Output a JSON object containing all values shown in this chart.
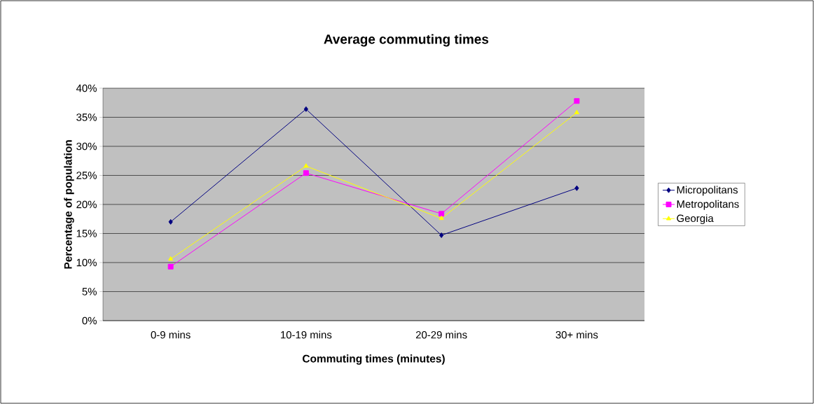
{
  "chart_data": {
    "type": "line",
    "title": "Average commuting times",
    "xlabel": "Commuting times (minutes)",
    "ylabel": "Percentage of population",
    "categories": [
      "0-9 mins",
      "10-19 mins",
      "20-29 mins",
      "30+ mins"
    ],
    "series": [
      {
        "name": "Micropolitans",
        "color": "#000080",
        "marker": "diamond",
        "values": [
          17.0,
          36.4,
          14.7,
          22.8
        ]
      },
      {
        "name": "Metropolitans",
        "color": "#ff00ff",
        "marker": "square",
        "values": [
          9.3,
          25.4,
          18.4,
          37.8
        ]
      },
      {
        "name": "Georgia",
        "color": "#ffff00",
        "marker": "triangle",
        "values": [
          10.6,
          26.6,
          17.6,
          35.8
        ]
      }
    ],
    "ylim": [
      0,
      40
    ],
    "yticks": [
      {
        "value": 0,
        "label": "0%"
      },
      {
        "value": 5,
        "label": "5%"
      },
      {
        "value": 10,
        "label": "10%"
      },
      {
        "value": 15,
        "label": "15%"
      },
      {
        "value": 20,
        "label": "20%"
      },
      {
        "value": 25,
        "label": "25%"
      },
      {
        "value": 30,
        "label": "30%"
      },
      {
        "value": 35,
        "label": "35%"
      },
      {
        "value": 40,
        "label": "40%"
      }
    ],
    "grid": "y",
    "legend": "right",
    "line_style": "solid"
  }
}
